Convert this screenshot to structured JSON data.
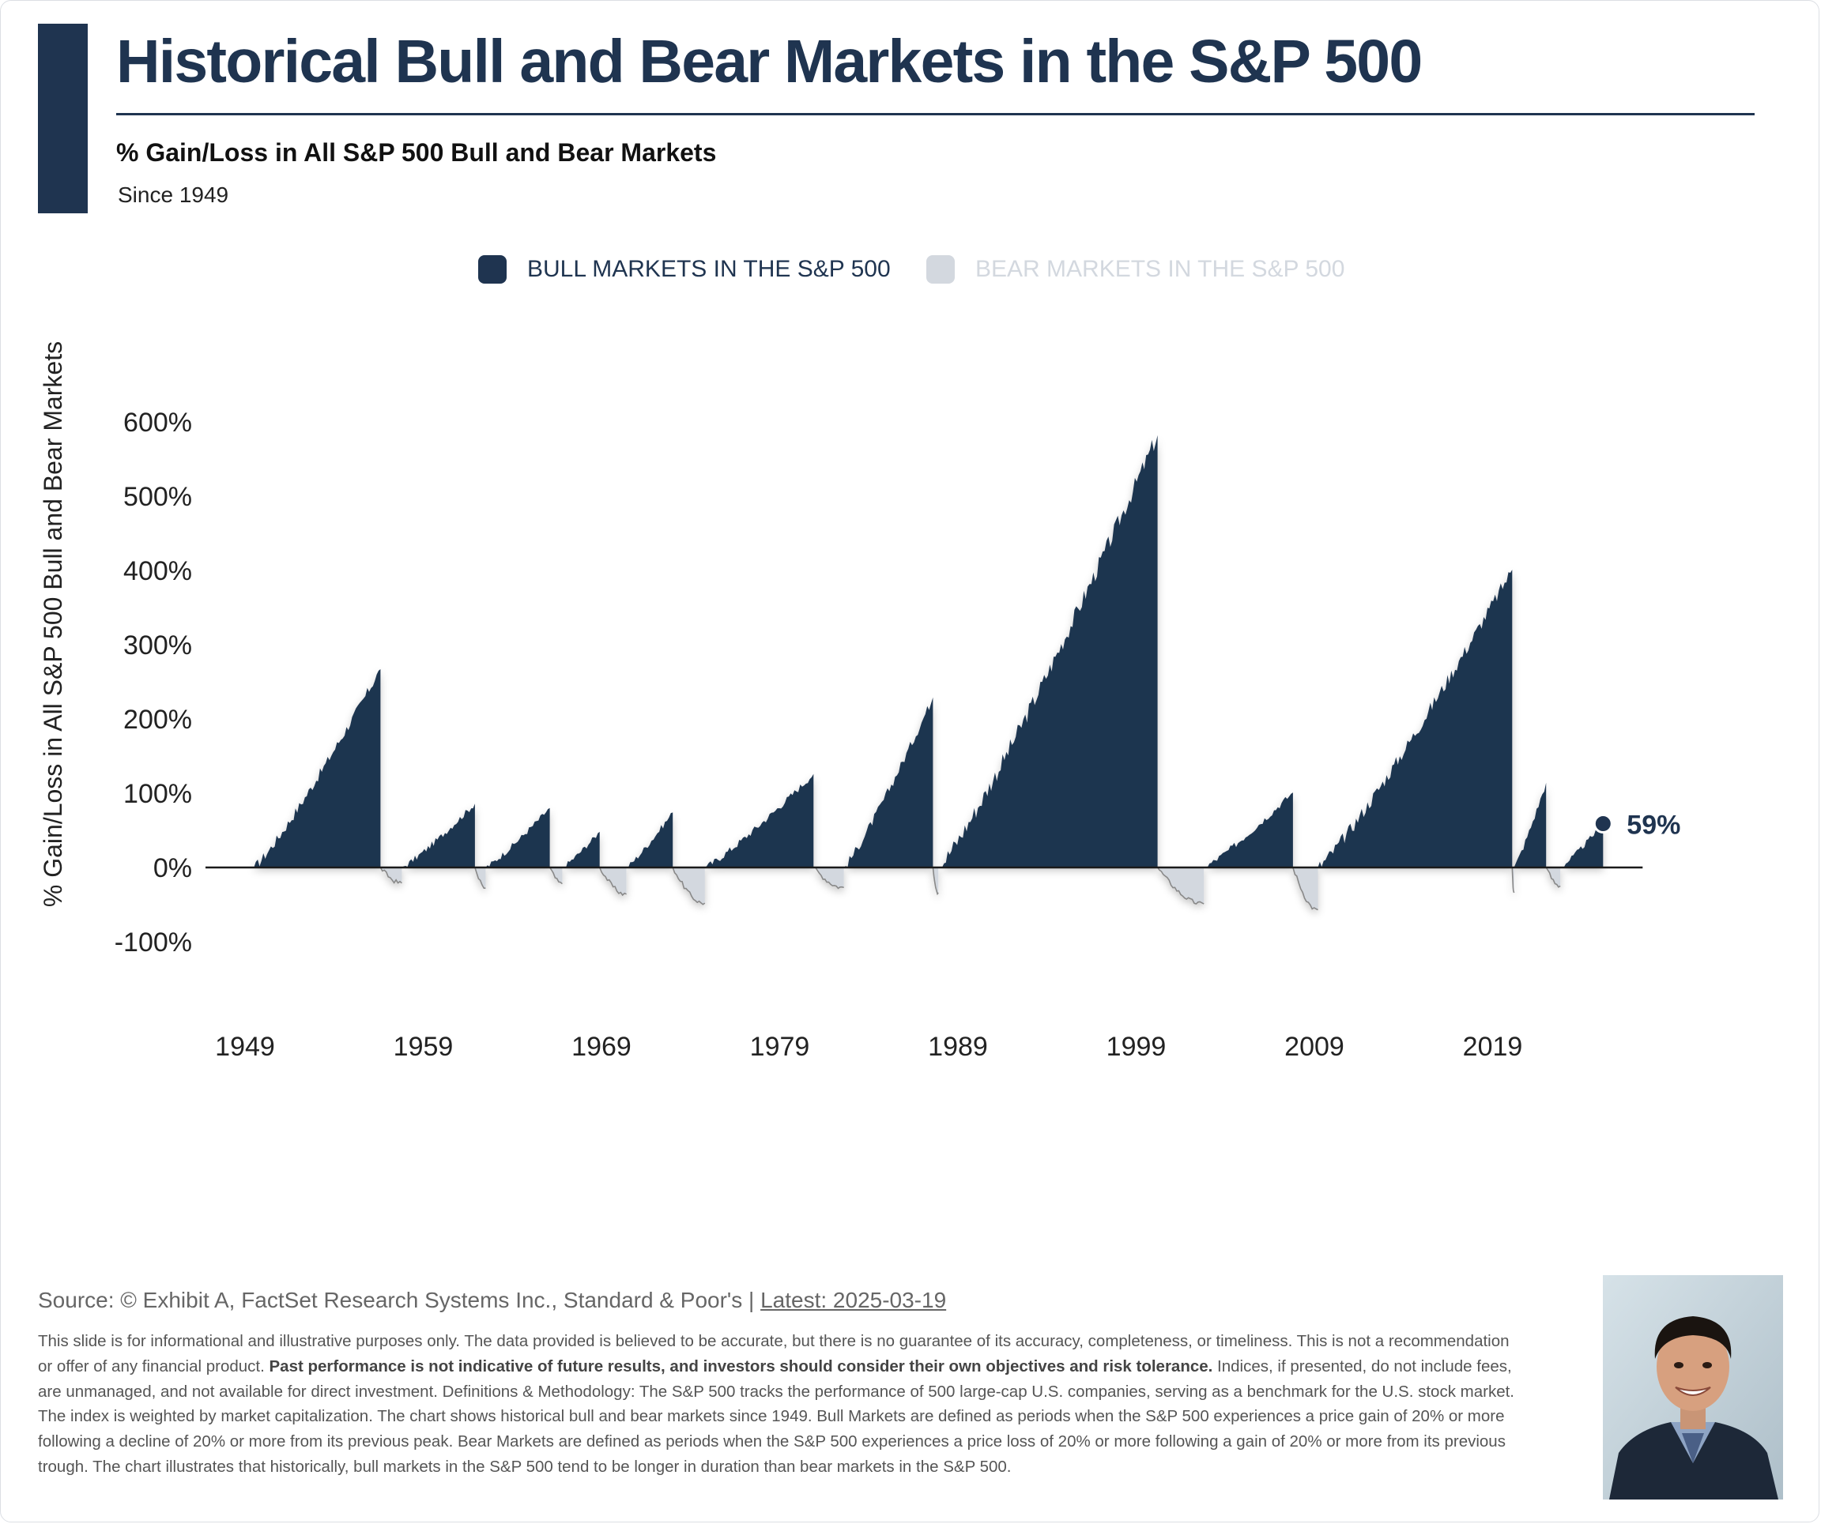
{
  "header": {
    "title": "Historical Bull and Bear Markets in the S&P 500",
    "subtitle": "% Gain/Loss in All S&P 500 Bull and Bear Markets",
    "since": "Since 1949"
  },
  "colors": {
    "bull": "#1f3450",
    "bear": "#d3d8df",
    "bear_line": "#888888",
    "text_dark": "#1f3450"
  },
  "legend": {
    "bull_label": "BULL MARKETS IN THE S&P 500",
    "bear_label": "BEAR MARKETS IN THE S&P 500"
  },
  "chart_data": {
    "type": "area",
    "ylabel": "% Gain/Loss in All S&P 500 Bull and Bear Markets",
    "xlabel": "",
    "x_ticks": [
      "1949",
      "1959",
      "1969",
      "1979",
      "1989",
      "1999",
      "2009",
      "2019"
    ],
    "y_ticks": [
      "600%",
      "500%",
      "400%",
      "300%",
      "200%",
      "100%",
      "0%",
      "-100%"
    ],
    "ylim": [
      -100,
      600
    ],
    "xlim": [
      1949,
      2025.2
    ],
    "annotation": {
      "label": "59%",
      "x": 2025.2,
      "y": 59
    },
    "series": [
      {
        "market": "bull",
        "start": 1949.5,
        "end": 1956.6,
        "peak": 267
      },
      {
        "market": "bear",
        "start": 1956.6,
        "end": 1957.8,
        "trough": -21
      },
      {
        "market": "bull",
        "start": 1957.8,
        "end": 1961.9,
        "peak": 86
      },
      {
        "market": "bear",
        "start": 1961.9,
        "end": 1962.5,
        "trough": -28
      },
      {
        "market": "bull",
        "start": 1962.5,
        "end": 1966.1,
        "peak": 80
      },
      {
        "market": "bear",
        "start": 1966.1,
        "end": 1966.8,
        "trough": -22
      },
      {
        "market": "bull",
        "start": 1966.8,
        "end": 1968.9,
        "peak": 48
      },
      {
        "market": "bear",
        "start": 1968.9,
        "end": 1970.4,
        "trough": -36
      },
      {
        "market": "bull",
        "start": 1970.4,
        "end": 1973.0,
        "peak": 74
      },
      {
        "market": "bear",
        "start": 1973.0,
        "end": 1974.8,
        "trough": -48
      },
      {
        "market": "bull",
        "start": 1974.8,
        "end": 1980.9,
        "peak": 126
      },
      {
        "market": "bear",
        "start": 1980.9,
        "end": 1982.6,
        "trough": -27
      },
      {
        "market": "bull",
        "start": 1982.6,
        "end": 1987.6,
        "peak": 229
      },
      {
        "market": "bear",
        "start": 1987.6,
        "end": 1987.9,
        "trough": -34
      },
      {
        "market": "bull",
        "start": 1987.9,
        "end": 2000.2,
        "peak": 582
      },
      {
        "market": "bear",
        "start": 2000.2,
        "end": 2002.8,
        "trough": -49
      },
      {
        "market": "bull",
        "start": 2002.8,
        "end": 2007.8,
        "peak": 101
      },
      {
        "market": "bear",
        "start": 2007.8,
        "end": 2009.2,
        "trough": -57
      },
      {
        "market": "bull",
        "start": 2009.2,
        "end": 2020.1,
        "peak": 401
      },
      {
        "market": "bear",
        "start": 2020.1,
        "end": 2020.2,
        "trough": -34
      },
      {
        "market": "bull",
        "start": 2020.2,
        "end": 2022.0,
        "peak": 114
      },
      {
        "market": "bear",
        "start": 2022.0,
        "end": 2022.8,
        "trough": -25
      },
      {
        "market": "bull",
        "start": 2022.8,
        "end": 2025.2,
        "peak": 59
      }
    ]
  },
  "footer": {
    "source_text": "Source: © Exhibit A, FactSet Research Systems Inc., Standard & Poor's | ",
    "latest_link": "Latest: 2025-03-19",
    "disclaimer_part1": "This slide is for informational and illustrative purposes only. The data provided is believed to be accurate, but there is no guarantee of its accuracy, completeness, or timeliness. This is not a recommendation or offer of any financial product. ",
    "disclaimer_bold": "Past performance is not indicative of future results, and investors should consider their own objectives and risk tolerance.",
    "disclaimer_part2": " Indices, if presented, do not include fees, are unmanaged, and not available for direct investment. Definitions & Methodology: The S&P 500 tracks the performance of 500 large-cap U.S. companies, serving as a benchmark for the U.S. stock market. The index is weighted by market capitalization. The chart shows historical bull and bear markets since 1949. Bull Markets are defined as periods when the S&P 500 experiences a price gain of 20% or more following a decline of 20% or more from its previous peak. Bear Markets are defined as periods when the S&P 500 experiences a price loss of 20% or more following a gain of 20% or more from its previous trough. The chart illustrates that historically, bull markets in the S&P 500 tend to be longer in duration than bear markets in the S&P 500."
  }
}
